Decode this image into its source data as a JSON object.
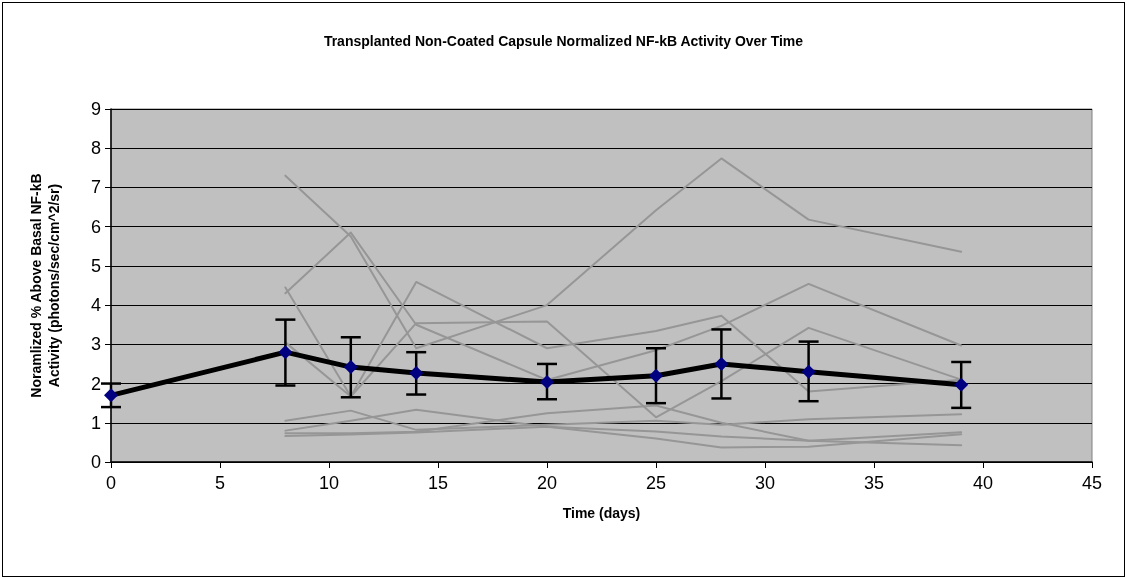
{
  "chart_data": {
    "type": "line",
    "title": "Transplanted Non-Coated Capsule Normalized NF-kB Activity Over Time",
    "xlabel": "Time (days)",
    "ylabel": "Noramlized % Above Basal NF-kB\nActivity (photons/sec/cm^2/sr)",
    "xlim": [
      0,
      45
    ],
    "xticks": [
      0,
      5,
      10,
      15,
      20,
      25,
      30,
      35,
      40,
      45
    ],
    "ylim": [
      0,
      9
    ],
    "yticks": [
      0,
      1,
      2,
      3,
      4,
      5,
      6,
      7,
      8,
      9
    ],
    "grid": "y",
    "line_style": "solid",
    "series": [
      {
        "color": "#969696",
        "marker": "none",
        "x": [
          8,
          11,
          14,
          20,
          25,
          28,
          32,
          39
        ],
        "values": [
          7.3,
          5.75,
          2.9,
          4.0,
          6.42,
          7.74,
          6.18,
          5.36
        ]
      },
      {
        "color": "#969696",
        "marker": "none",
        "x": [
          8,
          11,
          14,
          20,
          25,
          28,
          32,
          39
        ],
        "values": [
          4.3,
          5.85,
          3.5,
          2.09,
          2.85,
          3.47,
          4.54,
          2.97
        ]
      },
      {
        "color": "#969696",
        "marker": "none",
        "x": [
          8,
          11,
          14,
          20,
          25,
          28,
          32,
          39
        ],
        "values": [
          4.45,
          1.67,
          4.59,
          2.9,
          3.34,
          3.73,
          1.8,
          2.1
        ]
      },
      {
        "color": "#969696",
        "marker": "none",
        "x": [
          8,
          11,
          14,
          20,
          25,
          28,
          32,
          39
        ],
        "values": [
          3.05,
          1.67,
          3.54,
          3.58,
          1.14,
          2.06,
          3.42,
          2.1
        ]
      },
      {
        "color": "#969696",
        "marker": "none",
        "x": [
          8,
          11,
          14,
          20,
          25,
          28,
          32,
          39
        ],
        "values": [
          1.05,
          1.31,
          0.82,
          0.95,
          1.05,
          0.95,
          1.09,
          1.22
        ]
      },
      {
        "color": "#969696",
        "marker": "none",
        "x": [
          8,
          11,
          14,
          20,
          25,
          28,
          32,
          39
        ],
        "values": [
          0.8,
          1.05,
          1.33,
          0.9,
          0.78,
          0.65,
          0.54,
          0.43
        ]
      },
      {
        "color": "#969696",
        "marker": "none",
        "x": [
          8,
          11,
          14,
          20,
          25,
          28,
          32,
          39
        ],
        "values": [
          0.73,
          0.73,
          0.77,
          1.24,
          1.44,
          1.0,
          0.54,
          0.76
        ]
      },
      {
        "color": "#969696",
        "marker": "none",
        "x": [
          8,
          11,
          14,
          20,
          25,
          28,
          32,
          39
        ],
        "values": [
          0.66,
          0.7,
          0.75,
          0.9,
          0.6,
          0.37,
          0.39,
          0.71
        ]
      },
      {
        "color": "#000080",
        "marker": "diamond",
        "x": [
          0,
          8,
          11,
          14,
          20,
          25,
          28,
          32,
          39
        ],
        "values": [
          1.7,
          2.8,
          2.42,
          2.27,
          2.04,
          2.2,
          2.5,
          2.3,
          1.97
        ],
        "errors": [
          [
            1.4,
            2.0
          ],
          [
            1.95,
            3.63
          ],
          [
            1.65,
            3.18
          ],
          [
            1.72,
            2.8
          ],
          [
            1.6,
            2.5
          ],
          [
            1.5,
            2.9
          ],
          [
            1.62,
            3.38
          ],
          [
            1.55,
            3.07
          ],
          [
            1.38,
            2.55
          ]
        ]
      }
    ]
  }
}
